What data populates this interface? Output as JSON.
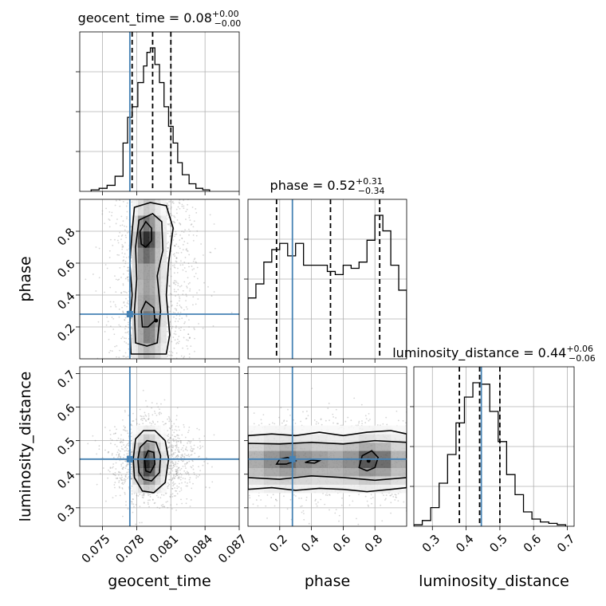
{
  "chart_data": {
    "type": "corner",
    "parameters": [
      {
        "name": "geocent_time",
        "xlabel": "geocent_time",
        "ylabel": "",
        "range": [
          0.073,
          0.087
        ],
        "ticks": [
          0.075,
          0.078,
          0.081,
          0.084,
          0.087
        ],
        "tick_labels": [
          "0.075",
          "0.078",
          "0.081",
          "0.084",
          "0.087"
        ],
        "truth": 0.0774,
        "quantiles": [
          0.0776,
          0.0794,
          0.081
        ],
        "title": {
          "main": "geocent_time = 0.08",
          "plus": "+0.00",
          "minus": "−0.00"
        },
        "histogram": {
          "bin_edges": [
            0.074,
            0.0747,
            0.0754,
            0.0761,
            0.0768,
            0.0772,
            0.0776,
            0.0781,
            0.0786,
            0.0789,
            0.0792,
            0.0796,
            0.08,
            0.0804,
            0.0808,
            0.0812,
            0.0816,
            0.082,
            0.0826,
            0.0832,
            0.0838,
            0.0844
          ],
          "counts": [
            0.01,
            0.02,
            0.04,
            0.1,
            0.32,
            0.49,
            0.56,
            0.72,
            0.83,
            0.92,
            0.95,
            0.84,
            0.72,
            0.56,
            0.43,
            0.32,
            0.19,
            0.11,
            0.05,
            0.02,
            0.01
          ]
        }
      },
      {
        "name": "phase",
        "xlabel": "phase",
        "ylabel": "phase",
        "range": [
          0.0,
          1.0
        ],
        "ticks": [
          0.2,
          0.4,
          0.6,
          0.8
        ],
        "tick_labels": [
          "0.2",
          "0.4",
          "0.6",
          "0.8"
        ],
        "truth": 0.28,
        "quantiles": [
          0.18,
          0.52,
          0.83
        ],
        "title": {
          "main": "phase = 0.52",
          "plus": "+0.31",
          "minus": "−0.34"
        },
        "histogram": {
          "bin_edges": [
            0.0,
            0.05,
            0.1,
            0.15,
            0.2,
            0.25,
            0.3,
            0.35,
            0.4,
            0.45,
            0.5,
            0.55,
            0.6,
            0.65,
            0.7,
            0.75,
            0.8,
            0.85,
            0.9,
            0.95,
            1.0
          ],
          "counts": [
            0.39,
            0.48,
            0.62,
            0.7,
            0.74,
            0.66,
            0.74,
            0.6,
            0.6,
            0.6,
            0.56,
            0.54,
            0.6,
            0.58,
            0.62,
            0.76,
            0.92,
            0.82,
            0.6,
            0.44
          ]
        }
      },
      {
        "name": "luminosity_distance",
        "xlabel": "luminosity_distance",
        "ylabel": "luminosity_distance",
        "range": [
          0.245,
          0.72
        ],
        "ticks": [
          0.3,
          0.4,
          0.5,
          0.6,
          0.7
        ],
        "tick_labels": [
          "0.3",
          "0.4",
          "0.5",
          "0.6",
          "0.7"
        ],
        "truth": 0.445,
        "quantiles": [
          0.38,
          0.44,
          0.5
        ],
        "title": {
          "main": "luminosity_distance = 0.44",
          "plus": "+0.06",
          "minus": "−0.06"
        },
        "histogram": {
          "bin_edges": [
            0.245,
            0.27,
            0.295,
            0.32,
            0.345,
            0.37,
            0.395,
            0.42,
            0.445,
            0.47,
            0.495,
            0.52,
            0.545,
            0.57,
            0.595,
            0.62,
            0.645,
            0.67,
            0.695
          ],
          "counts": [
            0.01,
            0.04,
            0.13,
            0.3,
            0.5,
            0.72,
            0.9,
            1.0,
            0.99,
            0.8,
            0.59,
            0.36,
            0.22,
            0.1,
            0.05,
            0.03,
            0.02,
            0.01
          ]
        }
      }
    ],
    "levels": [
      0.39,
      0.86,
      0.99
    ],
    "contours": {
      "phase_vs_geocent_time": {
        "outer": [
          [
            0.0775,
            0.03
          ],
          [
            0.0774,
            0.22
          ],
          [
            0.0776,
            0.4
          ],
          [
            0.0774,
            0.6
          ],
          [
            0.0776,
            0.8
          ],
          [
            0.0778,
            0.95
          ],
          [
            0.0792,
            0.98
          ],
          [
            0.0806,
            0.96
          ],
          [
            0.0812,
            0.82
          ],
          [
            0.0808,
            0.6
          ],
          [
            0.0806,
            0.4
          ],
          [
            0.0809,
            0.15
          ],
          [
            0.0806,
            0.03
          ]
        ],
        "mid": [
          [
            0.0779,
            0.1
          ],
          [
            0.0778,
            0.3
          ],
          [
            0.078,
            0.5
          ],
          [
            0.0779,
            0.7
          ],
          [
            0.0782,
            0.87
          ],
          [
            0.0794,
            0.91
          ],
          [
            0.0802,
            0.86
          ],
          [
            0.0803,
            0.68
          ],
          [
            0.0798,
            0.52
          ],
          [
            0.0801,
            0.3
          ],
          [
            0.0798,
            0.1
          ],
          [
            0.0789,
            0.08
          ]
        ],
        "inner": [
          [
            [
              0.0784,
              0.72
            ],
            [
              0.0783,
              0.8
            ],
            [
              0.0788,
              0.86
            ],
            [
              0.0793,
              0.82
            ],
            [
              0.0793,
              0.74
            ],
            [
              0.0788,
              0.7
            ]
          ],
          [
            [
              0.0785,
              0.2
            ],
            [
              0.0784,
              0.3
            ],
            [
              0.0788,
              0.36
            ],
            [
              0.0795,
              0.32
            ],
            [
              0.0796,
              0.24
            ],
            [
              0.079,
              0.2
            ]
          ]
        ],
        "dots": [
          [
            0.0797,
            0.24
          ]
        ]
      },
      "luminosity_distance_vs_geocent_time": {
        "outer": [
          [
            0.0778,
            0.39
          ],
          [
            0.0777,
            0.445
          ],
          [
            0.0779,
            0.505
          ],
          [
            0.0786,
            0.53
          ],
          [
            0.0796,
            0.53
          ],
          [
            0.0805,
            0.5
          ],
          [
            0.0808,
            0.445
          ],
          [
            0.0805,
            0.375
          ],
          [
            0.0795,
            0.345
          ],
          [
            0.0785,
            0.35
          ]
        ],
        "mid": [
          [
            0.0782,
            0.405
          ],
          [
            0.0781,
            0.445
          ],
          [
            0.0783,
            0.48
          ],
          [
            0.0789,
            0.5
          ],
          [
            0.0797,
            0.495
          ],
          [
            0.0801,
            0.455
          ],
          [
            0.08,
            0.405
          ],
          [
            0.0793,
            0.38
          ],
          [
            0.0786,
            0.385
          ]
        ],
        "inner": [
          [
            [
              0.0788,
              0.41
            ],
            [
              0.0787,
              0.445
            ],
            [
              0.079,
              0.47
            ],
            [
              0.0795,
              0.465
            ],
            [
              0.0796,
              0.43
            ],
            [
              0.0792,
              0.405
            ]
          ]
        ],
        "dots": []
      },
      "luminosity_distance_vs_phase": {
        "outer": [
          [
            0.0,
            0.355
          ],
          [
            0.15,
            0.36
          ],
          [
            0.3,
            0.352
          ],
          [
            0.45,
            0.358
          ],
          [
            0.6,
            0.355
          ],
          [
            0.75,
            0.348
          ],
          [
            0.9,
            0.355
          ],
          [
            1.0,
            0.36
          ],
          [
            1.0,
            0.52
          ],
          [
            0.9,
            0.53
          ],
          [
            0.75,
            0.525
          ],
          [
            0.6,
            0.515
          ],
          [
            0.45,
            0.525
          ],
          [
            0.3,
            0.515
          ],
          [
            0.15,
            0.52
          ],
          [
            0.0,
            0.515
          ]
        ],
        "mid": [
          [
            0.0,
            0.39
          ],
          [
            0.2,
            0.385
          ],
          [
            0.4,
            0.395
          ],
          [
            0.6,
            0.39
          ],
          [
            0.8,
            0.382
          ],
          [
            1.0,
            0.39
          ],
          [
            1.0,
            0.495
          ],
          [
            0.8,
            0.5
          ],
          [
            0.6,
            0.49
          ],
          [
            0.4,
            0.495
          ],
          [
            0.2,
            0.49
          ],
          [
            0.0,
            0.492
          ]
        ],
        "inner": [
          [
            [
              0.18,
              0.43
            ],
            [
              0.2,
              0.445
            ],
            [
              0.25,
              0.45
            ],
            [
              0.3,
              0.44
            ],
            [
              0.24,
              0.43
            ]
          ],
          [
            [
              0.7,
              0.42
            ],
            [
              0.72,
              0.455
            ],
            [
              0.78,
              0.47
            ],
            [
              0.82,
              0.45
            ],
            [
              0.8,
              0.42
            ],
            [
              0.75,
              0.41
            ]
          ],
          [
            [
              0.36,
              0.435
            ],
            [
              0.4,
              0.442
            ],
            [
              0.45,
              0.44
            ],
            [
              0.42,
              0.433
            ]
          ]
        ],
        "dots": [
          [
            0.76,
            0.44
          ]
        ]
      }
    },
    "density": {
      "phase_vs_geocent_time": {
        "x_edges": [
          0.0776,
          0.0781,
          0.0786,
          0.0791,
          0.0796,
          0.0801,
          0.0806
        ],
        "y_edges": [
          0.0,
          0.1,
          0.2,
          0.3,
          0.4,
          0.5,
          0.6,
          0.7,
          0.8,
          0.9,
          1.0
        ],
        "values": [
          [
            0.1,
            0.25,
            0.35,
            0.3,
            0.2,
            0.08
          ],
          [
            0.2,
            0.4,
            0.6,
            0.55,
            0.3,
            0.12
          ],
          [
            0.2,
            0.45,
            0.65,
            0.6,
            0.4,
            0.15
          ],
          [
            0.15,
            0.4,
            0.5,
            0.45,
            0.3,
            0.1
          ],
          [
            0.15,
            0.35,
            0.45,
            0.4,
            0.25,
            0.1
          ],
          [
            0.18,
            0.4,
            0.45,
            0.42,
            0.28,
            0.12
          ],
          [
            0.2,
            0.55,
            0.7,
            0.6,
            0.3,
            0.12
          ],
          [
            0.25,
            0.75,
            1.0,
            0.8,
            0.35,
            0.12
          ],
          [
            0.15,
            0.5,
            0.65,
            0.5,
            0.25,
            0.08
          ],
          [
            0.05,
            0.15,
            0.25,
            0.2,
            0.1,
            0.03
          ]
        ]
      },
      "luminosity_distance_vs_geocent_time": {
        "x_edges": [
          0.0776,
          0.0781,
          0.0786,
          0.0791,
          0.0796,
          0.0801,
          0.0806
        ],
        "y_edges": [
          0.345,
          0.37,
          0.395,
          0.42,
          0.445,
          0.47,
          0.495,
          0.52,
          0.545
        ],
        "values": [
          [
            0.05,
            0.15,
            0.25,
            0.2,
            0.1,
            0.03
          ],
          [
            0.15,
            0.35,
            0.55,
            0.45,
            0.2,
            0.08
          ],
          [
            0.25,
            0.55,
            0.85,
            0.7,
            0.35,
            0.12
          ],
          [
            0.3,
            0.65,
            1.0,
            0.85,
            0.4,
            0.15
          ],
          [
            0.25,
            0.55,
            0.8,
            0.65,
            0.3,
            0.12
          ],
          [
            0.15,
            0.35,
            0.5,
            0.4,
            0.2,
            0.06
          ],
          [
            0.05,
            0.15,
            0.25,
            0.2,
            0.1,
            0.03
          ],
          [
            0.02,
            0.05,
            0.08,
            0.06,
            0.03,
            0.01
          ]
        ]
      },
      "luminosity_distance_vs_phase": {
        "x_edges": [
          0.0,
          0.1,
          0.2,
          0.3,
          0.4,
          0.5,
          0.6,
          0.7,
          0.8,
          0.9,
          1.0
        ],
        "y_edges": [
          0.345,
          0.37,
          0.395,
          0.42,
          0.445,
          0.47,
          0.495,
          0.52,
          0.545
        ],
        "values": [
          [
            0.05,
            0.08,
            0.08,
            0.07,
            0.06,
            0.06,
            0.07,
            0.1,
            0.08,
            0.05
          ],
          [
            0.15,
            0.2,
            0.22,
            0.2,
            0.18,
            0.18,
            0.2,
            0.25,
            0.22,
            0.15
          ],
          [
            0.3,
            0.4,
            0.45,
            0.4,
            0.35,
            0.35,
            0.4,
            0.5,
            0.45,
            0.3
          ],
          [
            0.4,
            0.55,
            0.7,
            0.55,
            0.5,
            0.45,
            0.55,
            0.8,
            0.7,
            0.4
          ],
          [
            0.35,
            0.5,
            0.6,
            0.5,
            0.45,
            0.4,
            0.5,
            0.75,
            0.65,
            0.35
          ],
          [
            0.2,
            0.3,
            0.35,
            0.3,
            0.25,
            0.25,
            0.3,
            0.4,
            0.35,
            0.2
          ],
          [
            0.08,
            0.12,
            0.12,
            0.1,
            0.1,
            0.08,
            0.1,
            0.15,
            0.12,
            0.08
          ],
          [
            0.03,
            0.04,
            0.04,
            0.03,
            0.03,
            0.03,
            0.03,
            0.05,
            0.04,
            0.03
          ]
        ]
      }
    }
  }
}
